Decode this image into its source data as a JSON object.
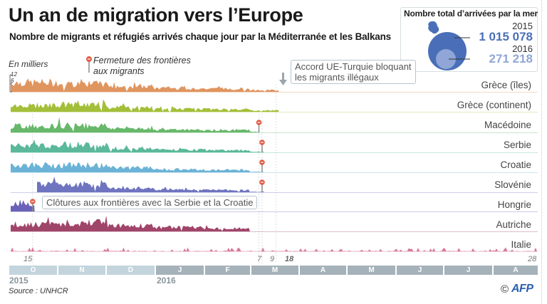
{
  "header": {
    "title": "Un an de migration vers l’Europe",
    "subtitle": "Nombre de migrants et réfugiés arrivés chaque jour par la Méditerranée et les Balkans"
  },
  "legend_box": {
    "title": "Nombre total d’arrivées par la mer",
    "entries": [
      {
        "year": "2015",
        "value": "1 015 078",
        "color": "#4a6fb8"
      },
      {
        "year": "2016",
        "value": "271 218",
        "color": "#8fa6d6"
      }
    ],
    "icon": "europe-map-icon"
  },
  "annotations": {
    "unit": "En milliers",
    "border_closure": "Fermeture des frontières aux migrants",
    "border_closure_lines": [
      "Fermeture des frontières",
      "aux migrants"
    ],
    "eu_turkey": [
      "Accord UE-Turquie bloquant",
      "les migrants illégaux"
    ],
    "fences": "Clôtures aux frontières avec la Serbie et la Croatie"
  },
  "footer": {
    "source": "Source : UNHCR",
    "copyright": "©",
    "logo": "AFP"
  },
  "chart_data": {
    "type": "area",
    "title": "Un an de migration vers l’Europe",
    "subtitle": "Nombre de migrants et réfugiés arrivés chaque jour par la Méditerranée et les Balkans",
    "ylabel": "En milliers",
    "yticks": [
      "12",
      "6",
      "0"
    ],
    "ylim": [
      0,
      12
    ],
    "x_range": [
      "2015-10-01",
      "2016-08-31"
    ],
    "date_labels": [
      {
        "label": "15",
        "date": "2015-10-15"
      },
      {
        "label": "7",
        "date": "2016-03-07"
      },
      {
        "label": "9",
        "date": "2016-03-09"
      },
      {
        "label": "18",
        "date": "2016-03-18",
        "bold": true
      },
      {
        "label": "28",
        "date": "2016-08-28"
      }
    ],
    "months": [
      {
        "label": "O",
        "year": "2015"
      },
      {
        "label": "N",
        "year": "2015"
      },
      {
        "label": "D",
        "year": "2015"
      },
      {
        "label": "J",
        "year": "2016"
      },
      {
        "label": "F",
        "year": "2016"
      },
      {
        "label": "M",
        "year": "2016"
      },
      {
        "label": "A",
        "year": "2016"
      },
      {
        "label": "M",
        "year": "2016"
      },
      {
        "label": "J",
        "year": "2016"
      },
      {
        "label": "J",
        "year": "2016"
      },
      {
        "label": "A",
        "year": "2016"
      }
    ],
    "years": [
      "2015",
      "2016"
    ],
    "series": [
      {
        "name": "Grèce (îles)",
        "color": "#e0955f",
        "start_month": 0,
        "end_month": 5.6,
        "monthly_avg": [
          6.5,
          5.5,
          3.8,
          2.5,
          2.2,
          1.2,
          0.2,
          0.05,
          0.05,
          0.05,
          0.05
        ],
        "peak": 8,
        "event": null
      },
      {
        "name": "Grèce (continent)",
        "color": "#a3bf3a",
        "start_month": 0,
        "end_month": 5.6,
        "monthly_avg": [
          4.5,
          5.0,
          3.0,
          2.0,
          1.8,
          1.0
        ],
        "peak": 9,
        "event": null
      },
      {
        "name": "Macédoine",
        "color": "#67b86a",
        "start_month": 0,
        "end_month": 5.2,
        "monthly_avg": [
          4.5,
          5.0,
          3.0,
          1.8,
          1.5,
          0.5
        ],
        "peak": 8,
        "event": "2016-03-07"
      },
      {
        "name": "Serbie",
        "color": "#5bb89a",
        "start_month": 0,
        "end_month": 5.3,
        "monthly_avg": [
          4.5,
          5.5,
          3.0,
          1.8,
          1.4,
          0.4
        ],
        "peak": 8,
        "event": "2016-03-09"
      },
      {
        "name": "Croatie",
        "color": "#6bb3d6",
        "start_month": 0,
        "end_month": 5.3,
        "monthly_avg": [
          5.0,
          5.0,
          3.2,
          2.0,
          1.5,
          0.3
        ],
        "peak": 8,
        "event": "2016-03-09"
      },
      {
        "name": "Slovénie",
        "color": "#6f74c0",
        "start_month": 0.55,
        "end_month": 5.3,
        "monthly_avg": [
          6.0,
          5.5,
          3.0,
          1.8,
          1.5,
          0.3
        ],
        "peak": 9,
        "event": "2016-03-09"
      },
      {
        "name": "Hongrie",
        "color": "#6a62b8",
        "start_month": 0,
        "end_month": 0.5,
        "monthly_avg": [
          5.5
        ],
        "peak": 7,
        "event": "2015-10-15"
      },
      {
        "name": "Autriche",
        "color": "#a0456a",
        "start_month": 0,
        "end_month": 5.0,
        "monthly_avg": [
          5.0,
          6.0,
          4.0,
          2.8,
          2.0,
          0.2
        ],
        "peak": 8,
        "event": null
      },
      {
        "name": "Italie",
        "color": "#d9799a",
        "start_month": 0,
        "end_month": 11,
        "monthly_avg": [
          0.5,
          0.4,
          0.3,
          0.2,
          0.3,
          0.4,
          0.5,
          0.8,
          1.0,
          0.8,
          0.7
        ],
        "peak": 3,
        "event": null
      }
    ]
  }
}
